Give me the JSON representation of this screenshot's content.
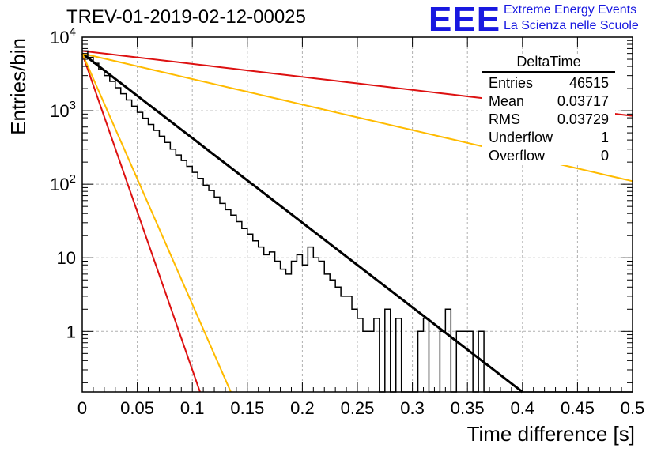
{
  "title": "TREV-01-2019-02-12-00025",
  "logo": {
    "mark": "EEE",
    "line1": "Extreme Energy Events",
    "line2": "La Scienza nelle Scuole",
    "color": "#1818e0"
  },
  "stats": {
    "title": "DeltaTime",
    "rows": [
      {
        "label": "Entries",
        "value": "46515"
      },
      {
        "label": "Mean",
        "value": "0.03717"
      },
      {
        "label": "RMS",
        "value": "0.03729"
      },
      {
        "label": "Underflow",
        "value": "1"
      },
      {
        "label": "Overflow",
        "value": "0"
      }
    ]
  },
  "chart_data": {
    "type": "line",
    "xlabel": "Time difference [s]",
    "ylabel": "Entries/bin",
    "xlim": [
      0,
      0.5
    ],
    "ylim": [
      0.15,
      10000
    ],
    "yscale": "log",
    "grid": true,
    "xticks": [
      0,
      0.05,
      0.1,
      0.15,
      0.2,
      0.25,
      0.3,
      0.35,
      0.4,
      0.45,
      0.5
    ],
    "xtick_labels": [
      "0",
      "0.05",
      "0.1",
      "0.15",
      "0.2",
      "0.25",
      "0.3",
      "0.35",
      "0.4",
      "0.45",
      "0.5"
    ],
    "yticks": [
      1,
      10,
      100,
      1000,
      10000
    ],
    "ytick_labels": [
      "1",
      "10",
      "10^2",
      "10^3",
      "10^4"
    ],
    "histogram": {
      "color": "#000000",
      "bin_width": 0.005,
      "x_start": 0,
      "counts": [
        6500,
        5300,
        4400,
        3600,
        3000,
        2500,
        2050,
        1700,
        1400,
        1150,
        950,
        790,
        650,
        540,
        450,
        370,
        300,
        250,
        210,
        175,
        145,
        120,
        97,
        82,
        67,
        55,
        45,
        38,
        31,
        25,
        21,
        17,
        14,
        11,
        12,
        9,
        7,
        6,
        9,
        11,
        8,
        14,
        10,
        9,
        6,
        5,
        4,
        3,
        3,
        2,
        1.5,
        1,
        1,
        1.5,
        0.15,
        2,
        0.15,
        1.5,
        0.15,
        0.15,
        0.15,
        1,
        1.5,
        0.15,
        0.15,
        1,
        2,
        0.15,
        1,
        1,
        1,
        0.15,
        1,
        0.15,
        0.15,
        0.15,
        0.15,
        0.15,
        0.15,
        0.15,
        0.15,
        0.15,
        0.15,
        0.15,
        0.15,
        0.15,
        0.15,
        0.15,
        0.15,
        0.15,
        0.15,
        0.15,
        0.15,
        0.15,
        0.15,
        0.15,
        0.15,
        0.15,
        0.15,
        0.15
      ]
    },
    "series": [
      {
        "color": "#000000",
        "x": [
          0,
          0.4
        ],
        "y": [
          6000,
          0.15
        ]
      },
      {
        "color": "#dd1111",
        "x": [
          0,
          0.5
        ],
        "y": [
          6500,
          850
        ]
      },
      {
        "color": "#ffbb00",
        "x": [
          0,
          0.5
        ],
        "y": [
          6000,
          110
        ]
      },
      {
        "color": "#dd1111",
        "x": [
          0,
          0.107
        ],
        "y": [
          6000,
          0.15
        ]
      },
      {
        "color": "#ffbb00",
        "x": [
          0,
          0.135
        ],
        "y": [
          6000,
          0.15
        ]
      }
    ]
  }
}
